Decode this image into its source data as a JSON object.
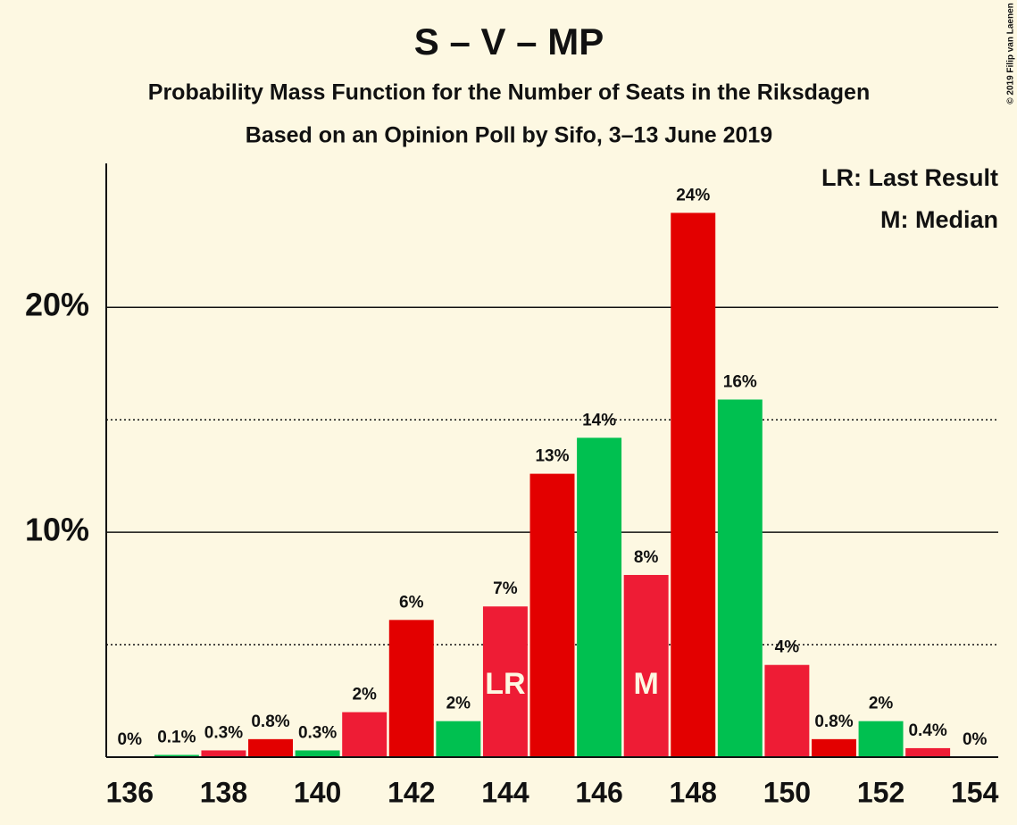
{
  "chart_data": {
    "type": "bar",
    "title": "S – V – MP",
    "subtitle": "Probability Mass Function for the Number of Seats in the Riksdagen",
    "subtitle2": "Based on an Opinion Poll by Sifo, 3–13 June 2019",
    "copyright": "© 2019 Filip van Laenen",
    "legend": [
      "LR: Last Result",
      "M: Median"
    ],
    "legend_position": "upper right",
    "x": [
      136,
      137,
      138,
      139,
      140,
      141,
      142,
      143,
      144,
      145,
      146,
      147,
      148,
      149,
      150,
      151,
      152,
      153,
      154
    ],
    "values": [
      0,
      0.1,
      0.3,
      0.8,
      0.3,
      2.0,
      6.1,
      1.6,
      6.7,
      12.6,
      14.2,
      8.1,
      24.2,
      15.9,
      4.1,
      0.8,
      1.6,
      0.4,
      0
    ],
    "value_labels": [
      "0%",
      "0.1%",
      "0.3%",
      "0.8%",
      "0.3%",
      "2%",
      "6%",
      "2%",
      "7%",
      "13%",
      "14%",
      "8%",
      "24%",
      "16%",
      "4%",
      "0.8%",
      "2%",
      "0.4%",
      "0%"
    ],
    "colors": [
      "#e30000",
      "#00c050",
      "#ee1c35",
      "#e30000",
      "#00c050",
      "#ee1c35",
      "#e30000",
      "#00c050",
      "#ee1c35",
      "#e30000",
      "#00c050",
      "#ee1c35",
      "#e30000",
      "#00c050",
      "#ee1c35",
      "#e30000",
      "#00c050",
      "#ee1c35",
      "#e30000"
    ],
    "annotations": [
      {
        "x": 144,
        "label": "LR"
      },
      {
        "x": 147,
        "label": "M"
      }
    ],
    "xlim": [
      135.5,
      154.5
    ],
    "xticks": [
      136,
      138,
      140,
      142,
      144,
      146,
      148,
      150,
      152,
      154
    ],
    "ylim": [
      0,
      26.4
    ],
    "yticks": [
      {
        "value": 10,
        "label": "10%"
      },
      {
        "value": 20,
        "label": "20%"
      }
    ],
    "minor_grid": [
      5,
      15
    ],
    "grid": true
  }
}
